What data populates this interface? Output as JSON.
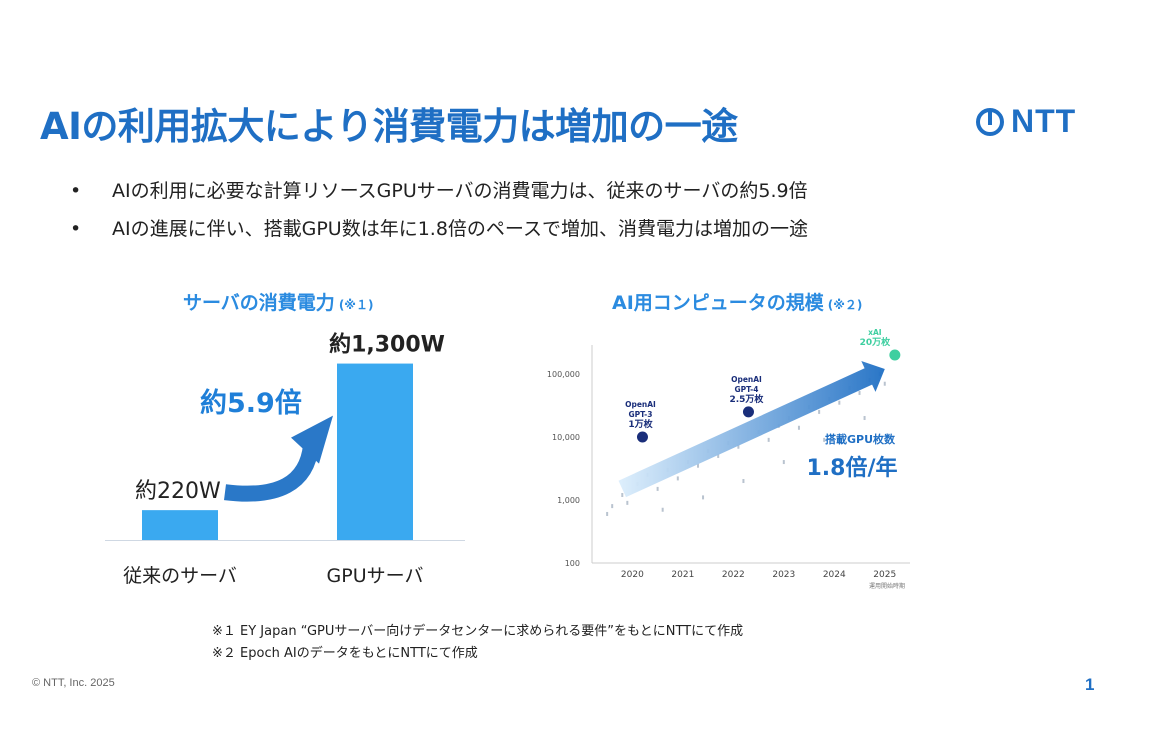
{
  "slide": {
    "title": "AIの利用拡大により消費電力は増加の一途",
    "logo_text": "NTT",
    "bullets": [
      "AIの利用に必要な計算リソースGPUサーバの消費電力は、従来のサーバの約5.9倍",
      "AIの進展に伴い、搭載GPU数は年に1.8倍のペースで増加、消費電力は増加の一途"
    ],
    "footnotes": [
      "※１ EY Japan “GPUサーバー向けデータセンターに求められる要件”をもとにNTTにて作成",
      "※２ Epoch AIのデータをもとにNTTにて作成"
    ],
    "copyright": "© NTT, Inc. 2025",
    "page_number": "1"
  },
  "colors": {
    "brand_blue": "#1f6fc4",
    "bar_blue": "#3aa9f0",
    "arrow_blue": "#2a78c8",
    "dot_navy": "#1a2e7a",
    "dot_green": "#3ecfa0"
  },
  "chart_data": [
    {
      "type": "bar",
      "title": "サーバの消費電力",
      "title_note": "(※１)",
      "categories": [
        "従来のサーバ",
        "GPUサーバ"
      ],
      "values": [
        220,
        1300
      ],
      "unit": "W",
      "data_labels": [
        "約220W",
        "約1,300W"
      ],
      "annotation": "約5.9倍",
      "ylim": [
        0,
        1400
      ]
    },
    {
      "type": "scatter",
      "title": "AI用コンピュータの規模",
      "title_note": "(※２)",
      "y_scale": "log",
      "ylim": [
        100,
        200000
      ],
      "xlim": [
        2019.2,
        2025.5
      ],
      "x_ticks": [
        "2020",
        "2021",
        "2022",
        "2023",
        "2024",
        "2025"
      ],
      "y_ticks": [
        "100",
        "1,000",
        "10,000",
        "100,000"
      ],
      "y_tick_values": [
        100,
        1000,
        10000,
        100000
      ],
      "x_axis_note": "運用開始時期",
      "highlighted_points": [
        {
          "label_lines": [
            "OpenAI",
            "GPT-3",
            "1万枚"
          ],
          "x": 2020.2,
          "y": 10000,
          "color": "#1a2e7a"
        },
        {
          "label_lines": [
            "OpenAI",
            "GPT-4",
            "2.5万枚"
          ],
          "x": 2022.3,
          "y": 25000,
          "color": "#1a2e7a"
        },
        {
          "label_lines": [
            "xAI",
            "20万枚"
          ],
          "x": 2025.2,
          "y": 200000,
          "color": "#3ecfa0"
        }
      ],
      "background_points": [
        {
          "x": 2019.5,
          "y": 600
        },
        {
          "x": 2019.6,
          "y": 800
        },
        {
          "x": 2019.8,
          "y": 1200
        },
        {
          "x": 2019.9,
          "y": 900
        },
        {
          "x": 2020.1,
          "y": 1800
        },
        {
          "x": 2020.3,
          "y": 2500
        },
        {
          "x": 2020.5,
          "y": 1500
        },
        {
          "x": 2020.7,
          "y": 3000
        },
        {
          "x": 2020.9,
          "y": 2200
        },
        {
          "x": 2021.1,
          "y": 4000
        },
        {
          "x": 2021.3,
          "y": 3500
        },
        {
          "x": 2021.5,
          "y": 6000
        },
        {
          "x": 2021.7,
          "y": 5000
        },
        {
          "x": 2021.9,
          "y": 8000
        },
        {
          "x": 2022.1,
          "y": 7000
        },
        {
          "x": 2022.5,
          "y": 12000
        },
        {
          "x": 2022.7,
          "y": 9000
        },
        {
          "x": 2022.9,
          "y": 15000
        },
        {
          "x": 2023.1,
          "y": 20000
        },
        {
          "x": 2023.3,
          "y": 14000
        },
        {
          "x": 2023.5,
          "y": 30000
        },
        {
          "x": 2023.7,
          "y": 25000
        },
        {
          "x": 2023.9,
          "y": 40000
        },
        {
          "x": 2024.1,
          "y": 35000
        },
        {
          "x": 2024.3,
          "y": 60000
        },
        {
          "x": 2024.5,
          "y": 50000
        },
        {
          "x": 2024.7,
          "y": 80000
        },
        {
          "x": 2024.9,
          "y": 100000
        },
        {
          "x": 2025.0,
          "y": 70000
        },
        {
          "x": 2020.6,
          "y": 700
        },
        {
          "x": 2021.4,
          "y": 1100
        },
        {
          "x": 2022.2,
          "y": 2000
        },
        {
          "x": 2023.0,
          "y": 4000
        },
        {
          "x": 2023.8,
          "y": 9000
        },
        {
          "x": 2024.6,
          "y": 20000
        }
      ],
      "trend": {
        "label": "搭載GPU枚数",
        "rate": "1.8倍/年",
        "start": {
          "x": 2019.8,
          "y": 1500
        },
        "end": {
          "x": 2025.0,
          "y": 120000
        }
      }
    }
  ]
}
